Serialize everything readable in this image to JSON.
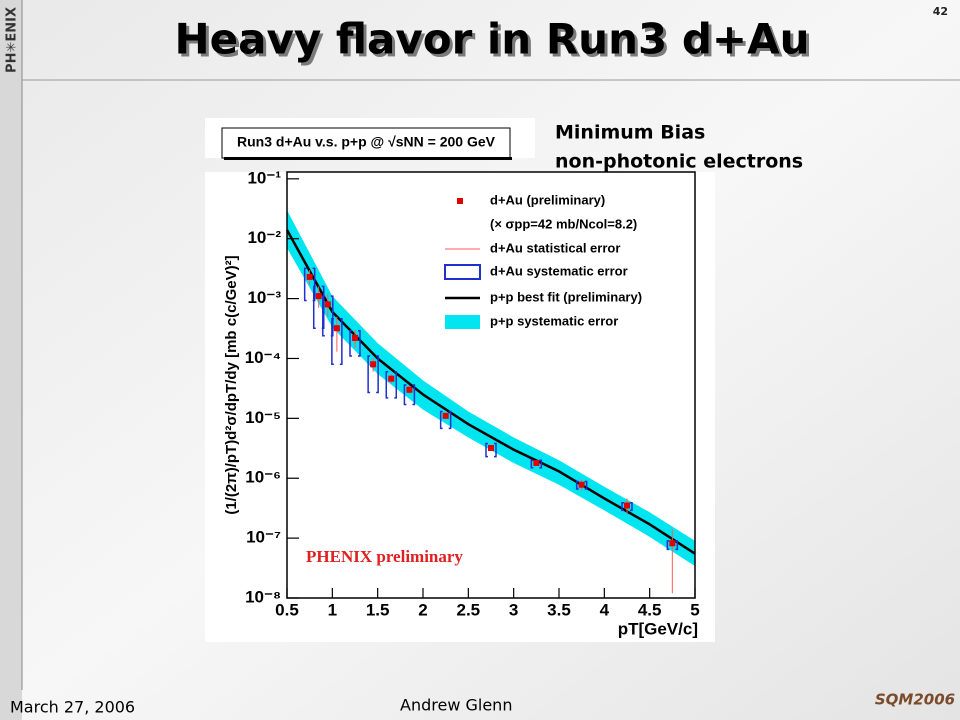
{
  "slide": {
    "title": "Heavy flavor in Run3 d+Au",
    "page_number": "42",
    "date": "March 27, 2006",
    "author": "Andrew Glenn",
    "logo_left": "PH✳ENIX",
    "logo_right": "SQM2006",
    "side_note": [
      "Minimum Bias",
      "non-photonic electrons"
    ]
  },
  "chart_data": {
    "type": "scatter",
    "title": "Run3 d+Au v.s. p+p @ √sNN = 200 GeV",
    "x_label": "pT[GeV/c]",
    "y_label": "(1/(2π)/pT)d²σ/dpT/dy [mb c(c/GeV)²]",
    "annotation": "PHENIX preliminary",
    "log_y": true,
    "grid": false,
    "legend": "top-right",
    "xlim": [
      0.5,
      5
    ],
    "ylim": [
      1e-08,
      0.13
    ],
    "xticks": [
      0.5,
      1,
      1.5,
      2,
      2.5,
      3,
      3.5,
      4,
      4.5,
      5
    ],
    "yticks": [
      {
        "value": 1e-08,
        "label": "10⁻⁸"
      },
      {
        "value": 1e-07,
        "label": "10⁻⁷"
      },
      {
        "value": 1e-06,
        "label": "10⁻⁶"
      },
      {
        "value": 1e-05,
        "label": "10⁻⁵"
      },
      {
        "value": 0.0001,
        "label": "10⁻⁴"
      },
      {
        "value": 0.001,
        "label": "10⁻³"
      },
      {
        "value": 0.01,
        "label": "10⁻²"
      },
      {
        "value": 0.1,
        "label": "10⁻¹"
      }
    ],
    "series": [
      {
        "name": "d+Au (preliminary)",
        "note": "(× σpp=42 mb/Ncol=8.2)",
        "type": "marker",
        "color": "#e00000",
        "x": [
          0.75,
          0.85,
          0.95,
          1.05,
          1.25,
          1.45,
          1.65,
          1.85,
          2.25,
          2.75,
          3.25,
          3.75,
          4.25,
          4.75
        ],
        "values": [
          0.0023,
          0.0011,
          0.0008,
          0.00032,
          0.00022,
          8e-05,
          4.6e-05,
          3e-05,
          1.1e-05,
          3.2e-06,
          1.8e-06,
          7.8e-07,
          3.5e-07,
          8.2e-08
        ]
      },
      {
        "name": "d+Au statistical error",
        "type": "errorbar",
        "color": "#ff5a5a",
        "x": [
          0.75,
          0.85,
          0.95,
          1.05,
          1.25,
          1.45,
          1.65,
          1.85,
          2.25,
          2.75,
          3.25,
          3.75,
          4.25,
          4.75
        ],
        "low": [
          0.0017,
          0.0007,
          0.0005,
          0.00013,
          0.00015,
          6e-05,
          3.8e-05,
          2.6e-05,
          1e-05,
          2.9e-06,
          1.6e-06,
          6.2e-07,
          2.5e-07,
          1.2e-08
        ],
        "high": [
          0.003,
          0.0016,
          0.0012,
          0.0005,
          0.0003,
          0.0001,
          5.5e-05,
          3.5e-05,
          1.2e-05,
          3.5e-06,
          2e-06,
          9.5e-07,
          4.6e-07,
          1.4e-07
        ]
      },
      {
        "name": "d+Au systematic error",
        "type": "box",
        "color": "#1f2fd0",
        "x": [
          0.75,
          0.85,
          0.95,
          1.05,
          1.25,
          1.45,
          1.65,
          1.85,
          2.25,
          2.75,
          3.25,
          3.75,
          4.25,
          4.75
        ],
        "low": [
          0.00093,
          0.00032,
          0.00024,
          8e-05,
          0.00011,
          2.7e-05,
          2.2e-05,
          1.7e-05,
          6.8e-06,
          2.3e-06,
          1.5e-06,
          6.6e-07,
          2.9e-07,
          6.5e-08
        ],
        "high": [
          0.0032,
          0.0016,
          0.0011,
          0.00046,
          0.00029,
          0.00011,
          6e-05,
          3.6e-05,
          1.3e-05,
          3.8e-06,
          2e-06,
          8.8e-07,
          3.9e-07,
          9e-08
        ]
      },
      {
        "name": "p+p best fit (preliminary)",
        "type": "line",
        "color": "#000000",
        "x": [
          0.5,
          1,
          1.5,
          2,
          2.5,
          3,
          3.5,
          4,
          4.5,
          5
        ],
        "values": [
          0.014,
          0.0006,
          0.0001,
          2.5e-05,
          8e-06,
          3e-06,
          1.3e-06,
          4.6e-07,
          1.7e-07,
          5.5e-08
        ]
      },
      {
        "name": "p+p systematic error",
        "type": "band",
        "color": "#00e5f0",
        "x": [
          0.5,
          1,
          1.5,
          2,
          2.5,
          3,
          3.5,
          4,
          4.5,
          5
        ],
        "low": [
          0.007,
          0.00033,
          5.5e-05,
          1.4e-05,
          4.8e-06,
          1.8e-06,
          7.8e-07,
          2.9e-07,
          1.05e-07,
          3.4e-08
        ],
        "high": [
          0.03,
          0.0011,
          0.00018,
          4.3e-05,
          1.3e-05,
          4.8e-06,
          2e-06,
          7.2e-07,
          2.7e-07,
          9e-08
        ]
      }
    ]
  }
}
